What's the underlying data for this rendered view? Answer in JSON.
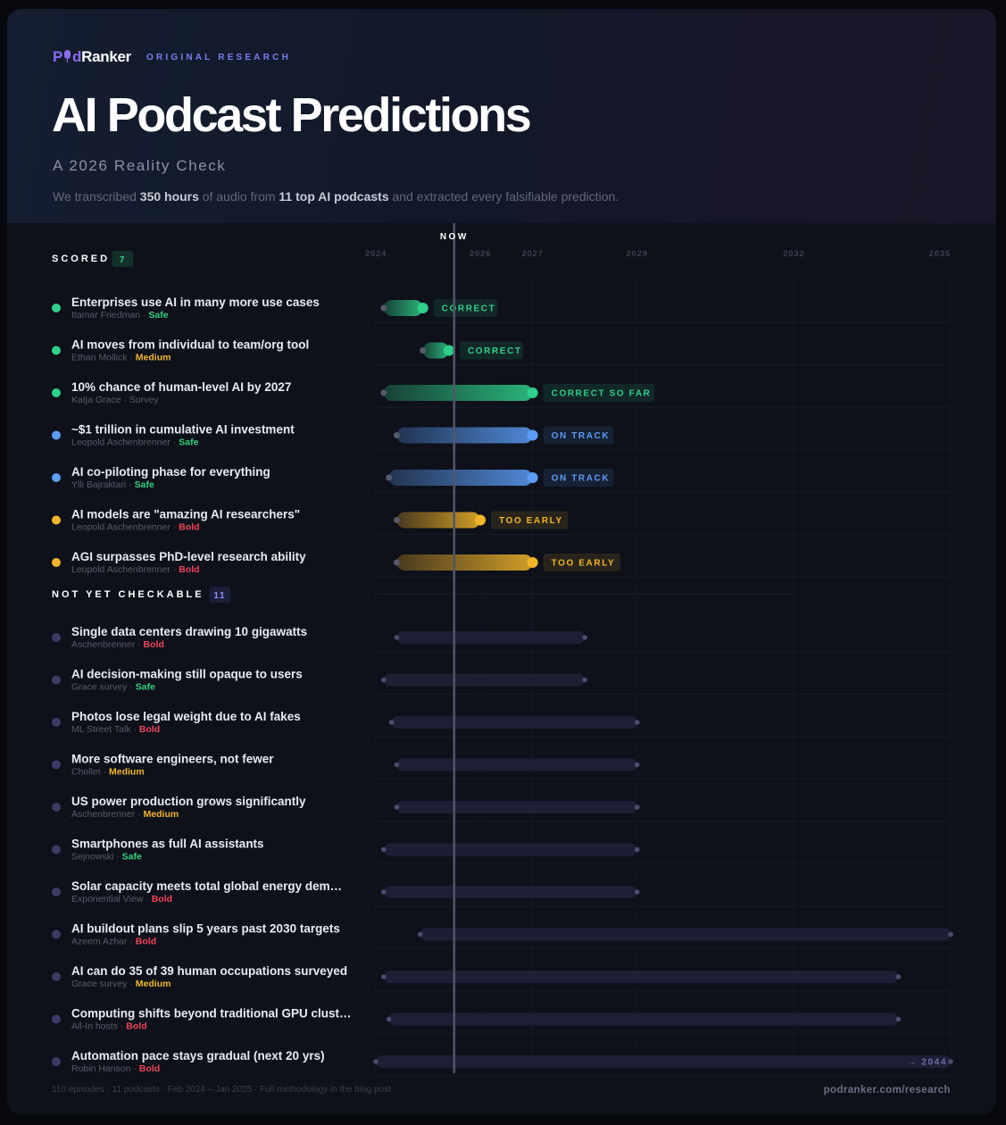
{
  "brand": {
    "logo_pre": "P",
    "logo_mid": "d",
    "logo_post": "Ranker",
    "tagline": "ORIGINAL RESEARCH"
  },
  "header": {
    "title": "AI Podcast Predictions",
    "subtitle": "A 2026 Reality Check",
    "desc_1": "We transcribed ",
    "desc_hours": "350 hours",
    "desc_2": " of audio from ",
    "desc_podcasts": "11 top AI podcasts",
    "desc_3": " and extracted every falsifiable prediction."
  },
  "colors": {
    "correct": "#2fd08a",
    "on_track": "#5b9cf5",
    "too_early": "#f2b52a",
    "pending": "#3d3b66",
    "safe": "#33d17a",
    "medium": "#f2b52a",
    "bold": "#f0455a"
  },
  "chart_data": {
    "type": "timeline",
    "now_label": "NOW",
    "now_year": 2025.5,
    "axis_ticks": [
      "2024",
      "2026",
      "2027",
      "2029",
      "2032",
      "2035"
    ],
    "axis_range": [
      2024,
      2035
    ],
    "sections": [
      {
        "title": "SCORED",
        "count": "7",
        "items": [
          {
            "title": "Enterprises use AI in many more use cases",
            "author": "Itamar Friedman",
            "risk": "Safe",
            "start": 2024.15,
            "end": 2024.9,
            "status": "CORRECT",
            "category": "correct"
          },
          {
            "title": "AI moves from individual to team/org tool",
            "author": "Ethan Mollick",
            "risk": "Medium",
            "start": 2024.9,
            "end": 2025.4,
            "status": "CORRECT",
            "category": "correct"
          },
          {
            "title": "10% chance of human-level AI by 2027",
            "author": "Katja Grace · Survey",
            "risk": "",
            "start": 2024.15,
            "end": 2027.0,
            "status": "CORRECT SO FAR",
            "category": "correct"
          },
          {
            "title": "~$1 trillion in cumulative AI investment",
            "author": "Leopold Aschenbrenner",
            "risk": "Safe",
            "start": 2024.4,
            "end": 2027.0,
            "status": "ON TRACK",
            "category": "on_track"
          },
          {
            "title": "AI co-piloting phase for everything",
            "author": "Ylli Bajraktari",
            "risk": "Safe",
            "start": 2024.25,
            "end": 2027.0,
            "status": "ON TRACK",
            "category": "on_track"
          },
          {
            "title": "AI models are \"amazing AI researchers\"",
            "author": "Leopold Aschenbrenner",
            "risk": "Bold",
            "start": 2024.4,
            "end": 2026.0,
            "status": "TOO EARLY",
            "category": "too_early"
          },
          {
            "title": "AGI surpasses PhD-level research ability",
            "author": "Leopold Aschenbrenner",
            "risk": "Bold",
            "start": 2024.4,
            "end": 2027.0,
            "status": "TOO EARLY",
            "category": "too_early"
          }
        ]
      },
      {
        "title": "NOT YET CHECKABLE",
        "count": "11",
        "items": [
          {
            "title": "Single data centers drawing 10 gigawatts",
            "author": "Aschenbrenner",
            "risk": "Bold",
            "start": 2024.4,
            "end": 2028.0,
            "status": "",
            "category": "pending"
          },
          {
            "title": "AI decision-making still opaque to users",
            "author": "Grace survey",
            "risk": "Safe",
            "start": 2024.15,
            "end": 2028.0,
            "status": "",
            "category": "pending"
          },
          {
            "title": "Photos lose legal weight due to AI fakes",
            "author": "ML Street Talk",
            "risk": "Bold",
            "start": 2024.3,
            "end": 2029.0,
            "status": "",
            "category": "pending"
          },
          {
            "title": "More software engineers, not fewer",
            "author": "Chollet",
            "risk": "Medium",
            "start": 2024.4,
            "end": 2029.0,
            "status": "",
            "category": "pending"
          },
          {
            "title": "US power production grows significantly",
            "author": "Aschenbrenner",
            "risk": "Medium",
            "start": 2024.4,
            "end": 2029.0,
            "status": "",
            "category": "pending"
          },
          {
            "title": "Smartphones as full AI assistants",
            "author": "Sejnowski",
            "risk": "Safe",
            "start": 2024.15,
            "end": 2029.0,
            "status": "",
            "category": "pending"
          },
          {
            "title": "Solar capacity meets total global energy dem…",
            "author": "Exponential View",
            "risk": "Bold",
            "start": 2024.15,
            "end": 2029.0,
            "status": "",
            "category": "pending"
          },
          {
            "title": "AI buildout plans slip 5 years past 2030 targets",
            "author": "Azeem Azhar",
            "risk": "Bold",
            "start": 2024.85,
            "end": 2035.0,
            "status": "",
            "category": "pending"
          },
          {
            "title": "AI can do 35 of 39 human occupations surveyed",
            "author": "Grace survey",
            "risk": "Medium",
            "start": 2024.15,
            "end": 2034.0,
            "status": "",
            "category": "pending"
          },
          {
            "title": "Computing shifts beyond traditional GPU clust…",
            "author": "All-In hosts",
            "risk": "Bold",
            "start": 2024.25,
            "end": 2034.0,
            "status": "",
            "category": "pending"
          },
          {
            "title": "Automation pace stays gradual (next 20 yrs)",
            "author": "Robin Hanson",
            "risk": "Bold",
            "start": 2024.0,
            "end": 2035.0,
            "status": "",
            "category": "pending",
            "overflow_label": "→ 2044"
          }
        ]
      }
    ]
  },
  "footer": {
    "left": "110 episodes · 11 podcasts · Feb 2024 – Jan 2025 · Full methodology in the blog post",
    "right": "podranker.com/research"
  }
}
